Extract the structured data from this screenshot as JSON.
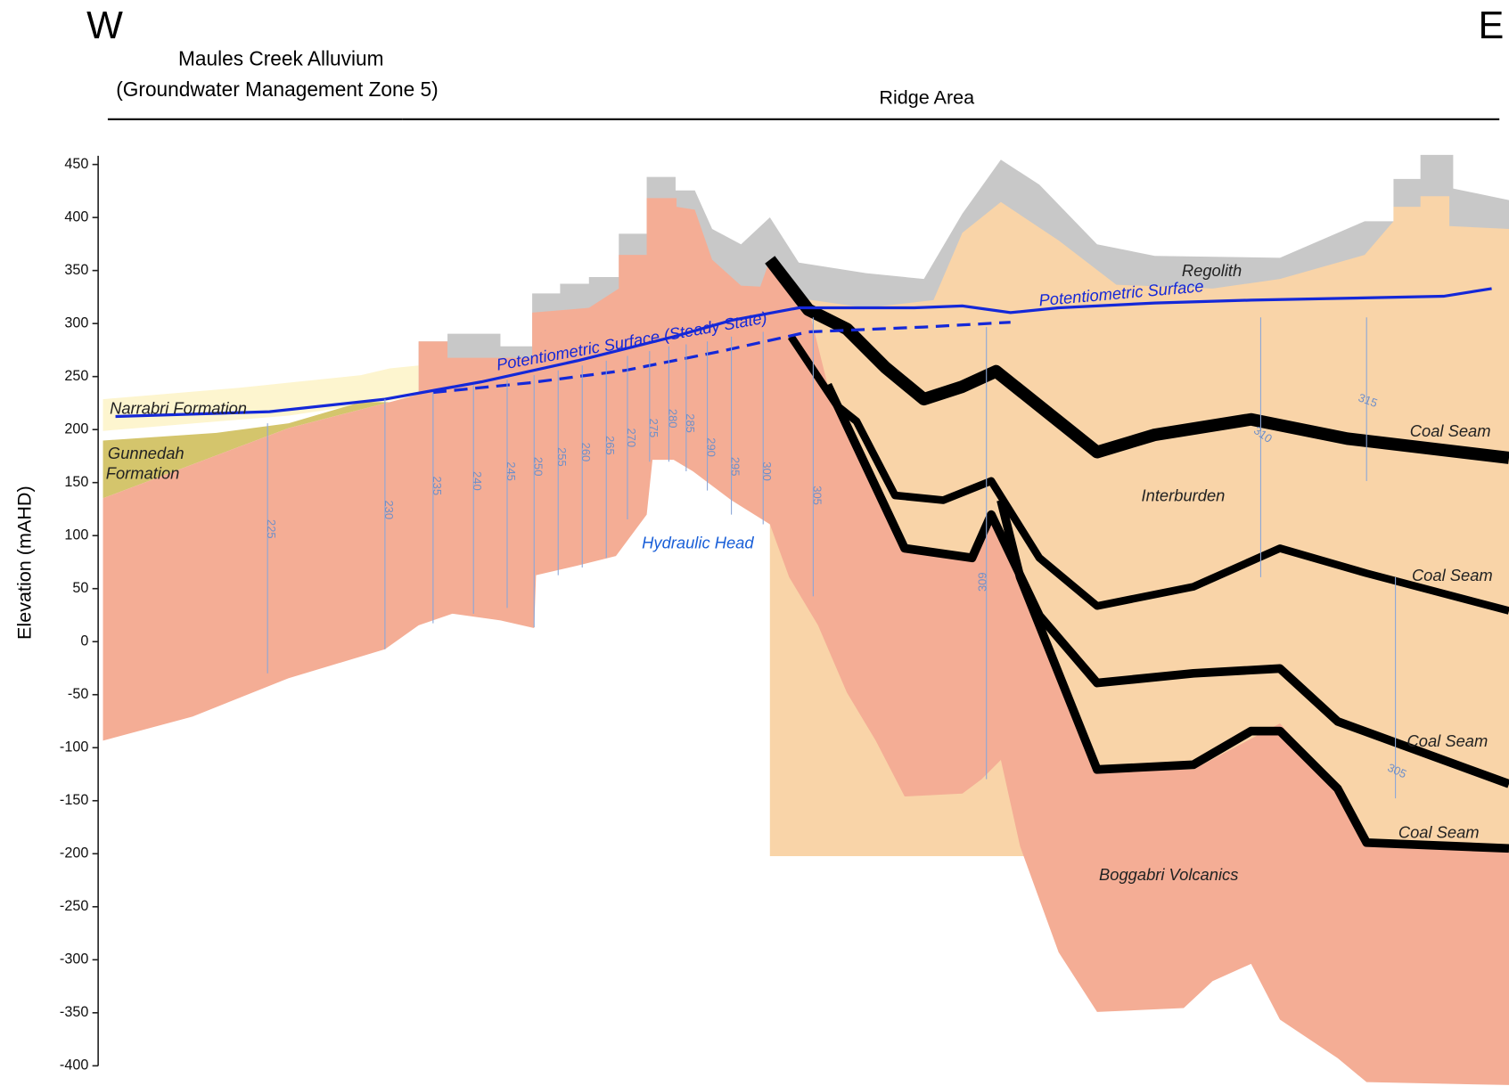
{
  "header": {
    "west": "W",
    "east": "E",
    "alluvium": [
      "Maules Creek Alluvium",
      "(Groundwater Management Zone 5)"
    ],
    "ridge": "Ridge Area"
  },
  "axis": {
    "label": "Elevation (mAHD)",
    "ylim": [
      -400,
      450
    ],
    "yticks": [
      450,
      400,
      350,
      300,
      250,
      200,
      150,
      100,
      50,
      0,
      -50,
      -100,
      -150,
      -200,
      -250,
      -300,
      -350,
      -400
    ]
  },
  "labels": {
    "regolith": "Regolith",
    "potentiometric": "Potentiometric Surface",
    "steady": "Potentiometric Surface (Steady State)",
    "narrabri": "Narrabri Formation",
    "gunnedah": [
      "Gunnedah",
      "Formation"
    ],
    "hydraulic": "Hydraulic Head",
    "interburden": "Interburden",
    "coal": [
      "Coal Seam",
      "Coal Seam",
      "Coal Seam",
      "Coal Seam"
    ],
    "volcanics": "Boggabri Volcanics"
  },
  "contours": [
    "225",
    "230",
    "235",
    "240",
    "245",
    "250",
    "255",
    "260",
    "265",
    "270",
    "275",
    "280",
    "285",
    "290",
    "295",
    "300",
    "305",
    "309",
    "315",
    "310",
    "305"
  ]
}
